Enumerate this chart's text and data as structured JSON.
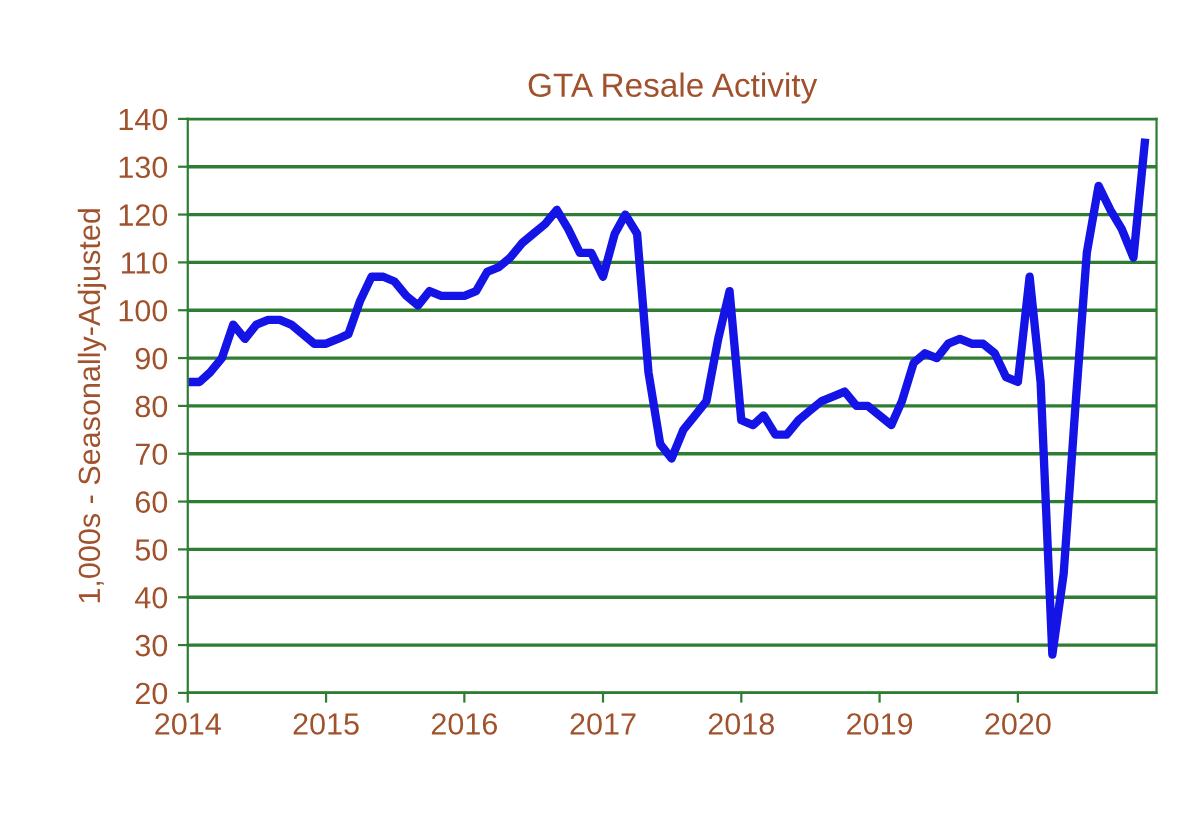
{
  "chart_data": {
    "type": "line",
    "title": "GTA Resale Activity",
    "ylabel": "1,000s - Seasonally-Adjusted",
    "x": [
      "2014-01",
      "2014-02",
      "2014-03",
      "2014-04",
      "2014-05",
      "2014-06",
      "2014-07",
      "2014-08",
      "2014-09",
      "2014-10",
      "2014-11",
      "2014-12",
      "2015-01",
      "2015-02",
      "2015-03",
      "2015-04",
      "2015-05",
      "2015-06",
      "2015-07",
      "2015-08",
      "2015-09",
      "2015-10",
      "2015-11",
      "2015-12",
      "2016-01",
      "2016-02",
      "2016-03",
      "2016-04",
      "2016-05",
      "2016-06",
      "2016-07",
      "2016-08",
      "2016-09",
      "2016-10",
      "2016-11",
      "2016-12",
      "2017-01",
      "2017-02",
      "2017-03",
      "2017-04",
      "2017-05",
      "2017-06",
      "2017-07",
      "2017-08",
      "2017-09",
      "2017-10",
      "2017-11",
      "2017-12",
      "2018-01",
      "2018-02",
      "2018-03",
      "2018-04",
      "2018-05",
      "2018-06",
      "2018-07",
      "2018-08",
      "2018-09",
      "2018-10",
      "2018-11",
      "2018-12",
      "2019-01",
      "2019-02",
      "2019-03",
      "2019-04",
      "2019-05",
      "2019-06",
      "2019-07",
      "2019-08",
      "2019-09",
      "2019-10",
      "2019-11",
      "2019-12",
      "2020-01",
      "2020-02",
      "2020-03",
      "2020-04",
      "2020-05",
      "2020-06",
      "2020-07",
      "2020-08",
      "2020-09",
      "2020-10",
      "2020-11",
      "2020-12"
    ],
    "series": [
      {
        "color": "#1414e6",
        "values": [
          85,
          85,
          87,
          90,
          97,
          94,
          97,
          98,
          98,
          97,
          95,
          93,
          93,
          94,
          95,
          102,
          107,
          107,
          106,
          103,
          101,
          104,
          103,
          103,
          103,
          104,
          108,
          109,
          111,
          114,
          116,
          118,
          121,
          117,
          112,
          112,
          107,
          116,
          120,
          116,
          87,
          72,
          69,
          75,
          78,
          81,
          94,
          104,
          77,
          76,
          78,
          74,
          74,
          77,
          79,
          81,
          82,
          83,
          80,
          80,
          78,
          76,
          81,
          89,
          91,
          90,
          93,
          94,
          93,
          93,
          91,
          86,
          85,
          107,
          85,
          28,
          45,
          80,
          112,
          126,
          121,
          117,
          111,
          135
        ]
      }
    ],
    "xlim": [
      "2014-01",
      "2021-01"
    ],
    "xticks": [
      {
        "value": "2014-01",
        "label": "2014"
      },
      {
        "value": "2015-01",
        "label": "2015"
      },
      {
        "value": "2016-01",
        "label": "2016"
      },
      {
        "value": "2017-01",
        "label": "2017"
      },
      {
        "value": "2018-01",
        "label": "2018"
      },
      {
        "value": "2019-01",
        "label": "2019"
      },
      {
        "value": "2020-01",
        "label": "2020"
      }
    ],
    "ylim": [
      20,
      140
    ],
    "yticks": [
      20,
      30,
      40,
      50,
      60,
      70,
      80,
      90,
      100,
      110,
      120,
      130,
      140
    ],
    "grid": "y",
    "legend": false,
    "marker": "none",
    "line_style": "solid"
  }
}
